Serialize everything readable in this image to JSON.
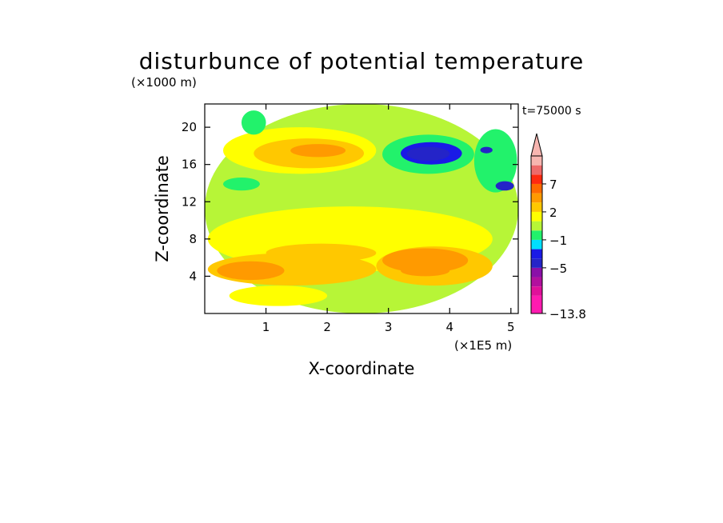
{
  "chart_data": {
    "type": "heatmap",
    "title": "disturbunce of potential temperature",
    "ylabel": "Z-coordinate",
    "xlabel": "X-coordinate",
    "y_unit": "(×1000 m)",
    "x_unit": "(×1E5 m)",
    "time_label": "t=75000 s",
    "xlim": [
      0,
      5.12
    ],
    "ylim": [
      0,
      22.5
    ],
    "x_ticks": [
      1,
      2,
      3,
      4,
      5
    ],
    "y_ticks": [
      4,
      8,
      12,
      16,
      20
    ],
    "x_tick_labels": [
      "1",
      "2",
      "3",
      "4",
      "5"
    ],
    "y_tick_labels": [
      "4",
      "8",
      "12",
      "16",
      "20"
    ],
    "colorbar": {
      "levels": [
        -13.8,
        -11,
        -9,
        -7,
        -5,
        -3,
        -2,
        -1,
        0,
        1,
        2,
        3,
        5,
        7,
        9,
        11
      ],
      "colors": [
        "#ff1ab0",
        "#e0109a",
        "#b2109e",
        "#8a10a8",
        "#2424c8",
        "#1a1ae6",
        "#00e0ff",
        "#22f26b",
        "#b7f537",
        "#ffff00",
        "#ffc800",
        "#ff9a00",
        "#ff6a00",
        "#ff2a10",
        "#ee6a6a",
        "#f7b5b0"
      ],
      "tick_labels": [
        "7",
        "2",
        "−1",
        "−5",
        "−13.8"
      ],
      "tick_values": [
        7,
        2,
        -1,
        -5,
        -13.8
      ],
      "extend": "max"
    },
    "regions": [
      {
        "value": 0.5,
        "x": [
          0,
          5.12
        ],
        "y": [
          0,
          22.5
        ]
      },
      {
        "value": 1.5,
        "x": [
          0.05,
          4.7
        ],
        "y": [
          4.5,
          11.5
        ]
      },
      {
        "value": 1.5,
        "x": [
          0.4,
          2.0
        ],
        "y": [
          0.8,
          3.0
        ]
      },
      {
        "value": 2.5,
        "x": [
          0.05,
          2.8
        ],
        "y": [
          3.0,
          6.5
        ]
      },
      {
        "value": 2.5,
        "x": [
          2.8,
          4.7
        ],
        "y": [
          3.0,
          7.2
        ]
      },
      {
        "value": 2.5,
        "x": [
          1.0,
          2.8
        ],
        "y": [
          5.5,
          7.5
        ]
      },
      {
        "value": 3.5,
        "x": [
          0.2,
          1.3
        ],
        "y": [
          3.6,
          5.6
        ]
      },
      {
        "value": 3.5,
        "x": [
          2.9,
          4.3
        ],
        "y": [
          4.4,
          7.0
        ]
      },
      {
        "value": 3.5,
        "x": [
          3.2,
          4.0
        ],
        "y": [
          4.0,
          5.2
        ]
      },
      {
        "value": 1.5,
        "x": [
          0.3,
          2.8
        ],
        "y": [
          15.0,
          20.0
        ]
      },
      {
        "value": 2.5,
        "x": [
          0.8,
          2.6
        ],
        "y": [
          15.6,
          18.8
        ]
      },
      {
        "value": 3.5,
        "x": [
          1.4,
          2.3
        ],
        "y": [
          16.8,
          18.2
        ]
      },
      {
        "value": 4.5,
        "x": [
          1.6,
          1.8
        ],
        "y": [
          17.2,
          17.8
        ]
      },
      {
        "value": 0.5,
        "x": [
          0.15,
          0.6
        ],
        "y": [
          13.6,
          14.8
        ]
      },
      {
        "value": -0.5,
        "x": [
          0.6,
          1.0
        ],
        "y": [
          19.2,
          21.8
        ]
      },
      {
        "value": -0.5,
        "x": [
          0.3,
          0.9
        ],
        "y": [
          13.2,
          14.6
        ]
      },
      {
        "value": -0.5,
        "x": [
          2.9,
          4.4
        ],
        "y": [
          15.0,
          19.2
        ]
      },
      {
        "value": -0.5,
        "x": [
          4.4,
          5.1
        ],
        "y": [
          13.0,
          19.8
        ]
      },
      {
        "value": -2.5,
        "x": [
          3.2,
          4.2
        ],
        "y": [
          16.0,
          18.4
        ]
      },
      {
        "value": -4,
        "x": [
          3.3,
          4.0
        ],
        "y": [
          16.4,
          17.9
        ]
      },
      {
        "value": -4,
        "x": [
          4.75,
          5.05
        ],
        "y": [
          13.2,
          14.2
        ]
      },
      {
        "value": -4,
        "x": [
          4.5,
          4.7
        ],
        "y": [
          17.2,
          17.9
        ]
      }
    ]
  }
}
